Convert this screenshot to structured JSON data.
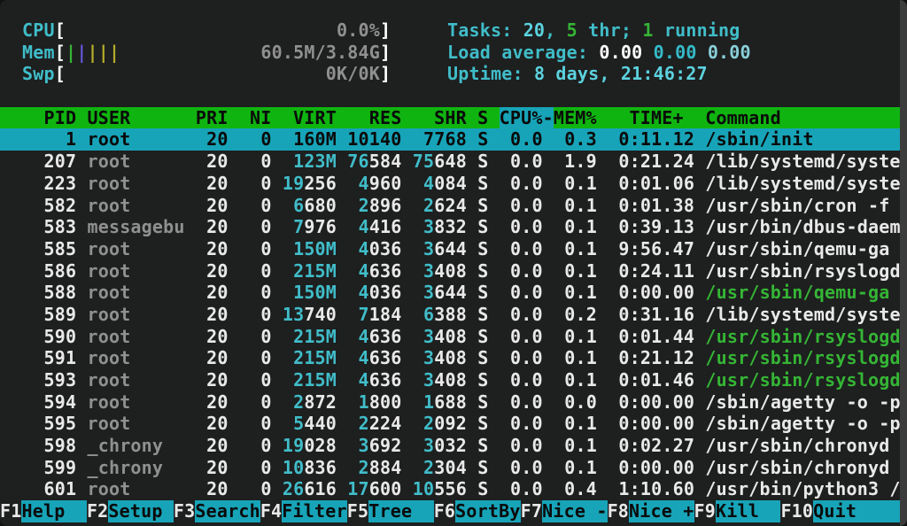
{
  "app_title": "htop",
  "colors": {
    "bg": "#1e1f1f",
    "white": "#e9e9e9",
    "bright-white": "#ffffff",
    "gray": "#909090",
    "cyan": "#40bdc9",
    "bright-cyan": "#5bd2de",
    "green": "#35b535",
    "header-green": "#10b410",
    "select-cyan": "#17a4b8",
    "bar-yellow": "#b3ab2a",
    "bar-indigo": "#6257d6",
    "load-five": "#35bac8",
    "load-fifteen": "#88cfd8",
    "edge": "#3c3c3c",
    "black": "#0a0a0a"
  },
  "meters": {
    "cpu": {
      "label": "CPU",
      "value": "0.0%"
    },
    "mem": {
      "label": "Mem",
      "value": "60.5M/3.84G",
      "bars": [
        "bar-green",
        "bar-indigo",
        "bar-yellow",
        "bar-yellow",
        "bar-yellow"
      ]
    },
    "swp": {
      "label": "Swp",
      "value": "0K/0K"
    }
  },
  "summary": {
    "tasks": [
      {
        "text": "Tasks: ",
        "color": "cyan"
      },
      {
        "text": "20",
        "color": "bright-cyan"
      },
      {
        "text": ", ",
        "color": "cyan"
      },
      {
        "text": "5",
        "color": "green"
      },
      {
        "text": " thr; ",
        "color": "cyan"
      },
      {
        "text": "1",
        "color": "green"
      },
      {
        "text": " running",
        "color": "cyan"
      }
    ],
    "load": [
      {
        "text": "Load average: ",
        "color": "cyan"
      },
      {
        "text": "0.00",
        "color": "bright-white"
      },
      {
        "text": " ",
        "color": "cyan"
      },
      {
        "text": "0.00",
        "color": "load-five"
      },
      {
        "text": " ",
        "color": "cyan"
      },
      {
        "text": "0.00",
        "color": "load-fifteen"
      }
    ],
    "uptime": [
      {
        "text": "Uptime: ",
        "color": "cyan"
      },
      {
        "text": "8 days, 21:46:27",
        "color": "bright-cyan"
      }
    ]
  },
  "table": {
    "headers": {
      "pid": "PID",
      "user": "USER",
      "pri": "PRI",
      "ni": "NI",
      "virt": "VIRT",
      "res": "RES",
      "shr": "SHR",
      "s": "S",
      "cpu": "CPU%-",
      "mem": "MEM%",
      "time": "TIME+",
      "command": "Command"
    },
    "sort_column": "CPU%",
    "sort_order": "descending",
    "processes": [
      {
        "pid": "1",
        "user": "root",
        "pri": "20",
        "ni": "0",
        "virt": [
          "160M",
          ""
        ],
        "res": [
          "10",
          "140"
        ],
        "shr": [
          "7",
          "768"
        ],
        "s": "S",
        "cpu": "0.0",
        "mem": "0.3",
        "time": "0:11.12",
        "command": "/sbin/init",
        "selected": true,
        "green": false
      },
      {
        "pid": "207",
        "user": "root",
        "pri": "20",
        "ni": "0",
        "virt": [
          "123M",
          ""
        ],
        "res": [
          "76",
          "584"
        ],
        "shr": [
          "75",
          "648"
        ],
        "s": "S",
        "cpu": "0.0",
        "mem": "1.9",
        "time": "0:21.24",
        "command": "/lib/systemd/syste",
        "selected": false,
        "green": false
      },
      {
        "pid": "223",
        "user": "root",
        "pri": "20",
        "ni": "0",
        "virt": [
          "19",
          "256"
        ],
        "res": [
          "4",
          "960"
        ],
        "shr": [
          "4",
          "084"
        ],
        "s": "S",
        "cpu": "0.0",
        "mem": "0.1",
        "time": "0:01.06",
        "command": "/lib/systemd/syste",
        "selected": false,
        "green": false
      },
      {
        "pid": "582",
        "user": "root",
        "pri": "20",
        "ni": "0",
        "virt": [
          "6",
          "680"
        ],
        "res": [
          "2",
          "896"
        ],
        "shr": [
          "2",
          "624"
        ],
        "s": "S",
        "cpu": "0.0",
        "mem": "0.1",
        "time": "0:01.38",
        "command": "/usr/sbin/cron -f",
        "selected": false,
        "green": false
      },
      {
        "pid": "583",
        "user": "messagebu",
        "pri": "20",
        "ni": "0",
        "virt": [
          "7",
          "976"
        ],
        "res": [
          "4",
          "416"
        ],
        "shr": [
          "3",
          "832"
        ],
        "s": "S",
        "cpu": "0.0",
        "mem": "0.1",
        "time": "0:39.13",
        "command": "/usr/bin/dbus-daem",
        "selected": false,
        "green": false
      },
      {
        "pid": "585",
        "user": "root",
        "pri": "20",
        "ni": "0",
        "virt": [
          "150M",
          ""
        ],
        "res": [
          "4",
          "036"
        ],
        "shr": [
          "3",
          "644"
        ],
        "s": "S",
        "cpu": "0.0",
        "mem": "0.1",
        "time": "9:56.47",
        "command": "/usr/sbin/qemu-ga",
        "selected": false,
        "green": false
      },
      {
        "pid": "586",
        "user": "root",
        "pri": "20",
        "ni": "0",
        "virt": [
          "215M",
          ""
        ],
        "res": [
          "4",
          "636"
        ],
        "shr": [
          "3",
          "408"
        ],
        "s": "S",
        "cpu": "0.0",
        "mem": "0.1",
        "time": "0:24.11",
        "command": "/usr/sbin/rsyslogd",
        "selected": false,
        "green": false
      },
      {
        "pid": "588",
        "user": "root",
        "pri": "20",
        "ni": "0",
        "virt": [
          "150M",
          ""
        ],
        "res": [
          "4",
          "036"
        ],
        "shr": [
          "3",
          "644"
        ],
        "s": "S",
        "cpu": "0.0",
        "mem": "0.1",
        "time": "0:00.00",
        "command": "/usr/sbin/qemu-ga",
        "selected": false,
        "green": true
      },
      {
        "pid": "589",
        "user": "root",
        "pri": "20",
        "ni": "0",
        "virt": [
          "13",
          "740"
        ],
        "res": [
          "7",
          "184"
        ],
        "shr": [
          "6",
          "388"
        ],
        "s": "S",
        "cpu": "0.0",
        "mem": "0.2",
        "time": "0:31.16",
        "command": "/lib/systemd/syste",
        "selected": false,
        "green": false
      },
      {
        "pid": "590",
        "user": "root",
        "pri": "20",
        "ni": "0",
        "virt": [
          "215M",
          ""
        ],
        "res": [
          "4",
          "636"
        ],
        "shr": [
          "3",
          "408"
        ],
        "s": "S",
        "cpu": "0.0",
        "mem": "0.1",
        "time": "0:01.44",
        "command": "/usr/sbin/rsyslogd",
        "selected": false,
        "green": true
      },
      {
        "pid": "591",
        "user": "root",
        "pri": "20",
        "ni": "0",
        "virt": [
          "215M",
          ""
        ],
        "res": [
          "4",
          "636"
        ],
        "shr": [
          "3",
          "408"
        ],
        "s": "S",
        "cpu": "0.0",
        "mem": "0.1",
        "time": "0:21.12",
        "command": "/usr/sbin/rsyslogd",
        "selected": false,
        "green": true
      },
      {
        "pid": "593",
        "user": "root",
        "pri": "20",
        "ni": "0",
        "virt": [
          "215M",
          ""
        ],
        "res": [
          "4",
          "636"
        ],
        "shr": [
          "3",
          "408"
        ],
        "s": "S",
        "cpu": "0.0",
        "mem": "0.1",
        "time": "0:01.46",
        "command": "/usr/sbin/rsyslogd",
        "selected": false,
        "green": true
      },
      {
        "pid": "594",
        "user": "root",
        "pri": "20",
        "ni": "0",
        "virt": [
          "2",
          "872"
        ],
        "res": [
          "1",
          "800"
        ],
        "shr": [
          "1",
          "688"
        ],
        "s": "S",
        "cpu": "0.0",
        "mem": "0.0",
        "time": "0:00.00",
        "command": "/sbin/agetty -o -p",
        "selected": false,
        "green": false
      },
      {
        "pid": "595",
        "user": "root",
        "pri": "20",
        "ni": "0",
        "virt": [
          "5",
          "440"
        ],
        "res": [
          "2",
          "224"
        ],
        "shr": [
          "2",
          "092"
        ],
        "s": "S",
        "cpu": "0.0",
        "mem": "0.1",
        "time": "0:00.00",
        "command": "/sbin/agetty -o -p",
        "selected": false,
        "green": false
      },
      {
        "pid": "598",
        "user": "_chrony",
        "pri": "20",
        "ni": "0",
        "virt": [
          "19",
          "028"
        ],
        "res": [
          "3",
          "692"
        ],
        "shr": [
          "3",
          "032"
        ],
        "s": "S",
        "cpu": "0.0",
        "mem": "0.1",
        "time": "0:02.27",
        "command": "/usr/sbin/chronyd",
        "selected": false,
        "green": false
      },
      {
        "pid": "599",
        "user": "_chrony",
        "pri": "20",
        "ni": "0",
        "virt": [
          "10",
          "836"
        ],
        "res": [
          "2",
          "884"
        ],
        "shr": [
          "2",
          "304"
        ],
        "s": "S",
        "cpu": "0.0",
        "mem": "0.1",
        "time": "0:00.00",
        "command": "/usr/sbin/chronyd",
        "selected": false,
        "green": false
      },
      {
        "pid": "601",
        "user": "root",
        "pri": "20",
        "ni": "0",
        "virt": [
          "26",
          "616"
        ],
        "res": [
          "17",
          "600"
        ],
        "shr": [
          "10",
          "556"
        ],
        "s": "S",
        "cpu": "0.0",
        "mem": "0.4",
        "time": "1:10.60",
        "command": "/usr/bin/python3 /",
        "selected": false,
        "green": false
      }
    ]
  },
  "fkeys": [
    {
      "key": "F1",
      "action": "Help"
    },
    {
      "key": "F2",
      "action": "Setup"
    },
    {
      "key": "F3",
      "action": "Search"
    },
    {
      "key": "F4",
      "action": "Filter"
    },
    {
      "key": "F5",
      "action": "Tree"
    },
    {
      "key": "F6",
      "action": "SortBy"
    },
    {
      "key": "F7",
      "action": "Nice -"
    },
    {
      "key": "F8",
      "action": "Nice +"
    },
    {
      "key": "F9",
      "action": "Kill"
    },
    {
      "key": "F10",
      "action": "Quit"
    }
  ]
}
